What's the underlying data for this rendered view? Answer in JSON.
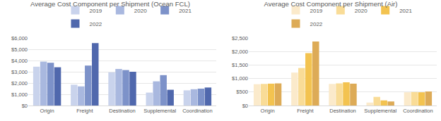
{
  "chart_data": [
    {
      "type": "bar",
      "title": "Average Cost Component per Shipment (Ocean FCL)",
      "categories": [
        "Origin",
        "Freight",
        "Destination",
        "Supplemental",
        "Coordination"
      ],
      "series": [
        {
          "name": "2019",
          "color": "#c9d3ec",
          "values": [
            3450,
            1850,
            2950,
            1150,
            1350
          ]
        },
        {
          "name": "2020",
          "color": "#a9b8df",
          "values": [
            3900,
            1700,
            3250,
            2150,
            1450
          ]
        },
        {
          "name": "2021",
          "color": "#7d92c9",
          "values": [
            3800,
            3550,
            3150,
            2700,
            1500
          ]
        },
        {
          "name": "2022",
          "color": "#5068ad",
          "values": [
            3400,
            5550,
            3000,
            1400,
            1600
          ]
        }
      ],
      "ylim": [
        0,
        6000
      ],
      "yticks": [
        {
          "value": 0,
          "label": "$0"
        },
        {
          "value": 1000,
          "label": "$1,000"
        },
        {
          "value": 2000,
          "label": "$2,000"
        },
        {
          "value": 3000,
          "label": "$3,000"
        },
        {
          "value": 4000,
          "label": "$4,000"
        },
        {
          "value": 5000,
          "label": "$5,000"
        },
        {
          "value": 6000,
          "label": "$6,000"
        }
      ],
      "grid": true,
      "legend": "top"
    },
    {
      "type": "bar",
      "title": "Average Cost Component per Shipment (Air)",
      "categories": [
        "Origin",
        "Freight",
        "Destination",
        "Supplemental",
        "Coordination"
      ],
      "series": [
        {
          "name": "2019",
          "color": "#fbeacb",
          "values": [
            790,
            1220,
            800,
            110,
            490
          ]
        },
        {
          "name": "2020",
          "color": "#f9dc97",
          "values": [
            800,
            1390,
            820,
            320,
            500
          ]
        },
        {
          "name": "2021",
          "color": "#f3c350",
          "values": [
            810,
            1940,
            860,
            190,
            490
          ]
        },
        {
          "name": "2022",
          "color": "#ddab57",
          "values": [
            820,
            2370,
            810,
            150,
            520
          ]
        }
      ],
      "ylim": [
        0,
        2500
      ],
      "yticks": [
        {
          "value": 0,
          "label": "$0"
        },
        {
          "value": 500,
          "label": "$500"
        },
        {
          "value": 1000,
          "label": "$1,000"
        },
        {
          "value": 1500,
          "label": "$1,500"
        },
        {
          "value": 2000,
          "label": "$2,000"
        },
        {
          "value": 2500,
          "label": "$2,500"
        }
      ],
      "grid": true,
      "legend": "top"
    }
  ]
}
